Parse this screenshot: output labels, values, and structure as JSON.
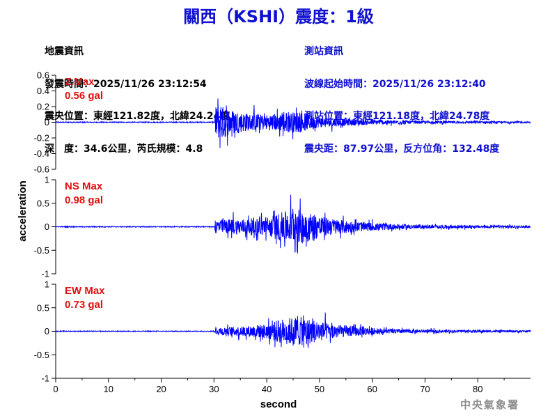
{
  "header": {
    "title": "關西（KSHI）震度：1級"
  },
  "event_info": {
    "heading": "地震資訊",
    "origin_time": "發震時間：2025/11/26 23:12:54",
    "epicenter": "震央位置：東經121.82度，北緯24.24度",
    "depth_magnitude": "深　度：34.6公里，芮氏規模：4.8"
  },
  "station_info": {
    "heading": "測站資訊",
    "wave_start": "波線起始時間：2025/11/26 23:12:40",
    "location": "測站位置：東經121.18度，北緯24.78度",
    "distance": "震央距：87.97公里，反方位角：132.48度"
  },
  "footer": {
    "agency": "中央氣象署"
  },
  "colors": {
    "trace": "#0000ff",
    "title": "#1010d0",
    "max_label": "#e01010"
  },
  "chart_data": {
    "type": "line",
    "xlabel": "second",
    "ylabel": "acceleration",
    "xlim": [
      0,
      90
    ],
    "x_ticks": [
      0,
      10,
      20,
      30,
      40,
      50,
      60,
      70,
      80
    ],
    "grid": false,
    "series": [
      {
        "name": "Z",
        "max_label": "Z Max",
        "max_value": "0.56 gal",
        "ylim": [
          -0.6,
          0.6
        ],
        "y_ticks": [
          -0.6,
          -0.4,
          -0.2,
          0,
          0.2,
          0.4,
          0.6
        ],
        "onset": 30.2,
        "noise": 0.006,
        "envelope": [
          [
            30.2,
            0.45
          ],
          [
            31,
            0.5
          ],
          [
            33,
            0.38
          ],
          [
            36,
            0.25
          ],
          [
            40,
            0.22
          ],
          [
            43,
            0.28
          ],
          [
            46,
            0.3
          ],
          [
            50,
            0.14
          ],
          [
            55,
            0.1
          ],
          [
            60,
            0.07
          ],
          [
            70,
            0.035
          ],
          [
            90,
            0.02
          ]
        ]
      },
      {
        "name": "NS",
        "max_label": "NS Max",
        "max_value": "0.98 gal",
        "ylim": [
          -1,
          1
        ],
        "y_ticks": [
          -1,
          -0.5,
          0,
          0.5,
          1
        ],
        "onset": 30.2,
        "noise": 0.01,
        "envelope": [
          [
            30.2,
            0.3
          ],
          [
            32,
            0.35
          ],
          [
            36,
            0.38
          ],
          [
            40,
            0.45
          ],
          [
            43,
            0.7
          ],
          [
            46,
            0.85
          ],
          [
            48,
            0.7
          ],
          [
            51,
            0.45
          ],
          [
            55,
            0.3
          ],
          [
            60,
            0.18
          ],
          [
            70,
            0.08
          ],
          [
            90,
            0.05
          ]
        ]
      },
      {
        "name": "EW",
        "max_label": "EW Max",
        "max_value": "0.73 gal",
        "ylim": [
          -1,
          1
        ],
        "y_ticks": [
          -1,
          -0.5,
          0,
          0.5,
          1
        ],
        "onset": 30.2,
        "noise": 0.008,
        "envelope": [
          [
            30.2,
            0.15
          ],
          [
            32,
            0.2
          ],
          [
            36,
            0.25
          ],
          [
            40,
            0.35
          ],
          [
            43,
            0.6
          ],
          [
            46,
            0.7
          ],
          [
            49,
            0.55
          ],
          [
            52,
            0.35
          ],
          [
            57,
            0.22
          ],
          [
            62,
            0.12
          ],
          [
            70,
            0.07
          ],
          [
            90,
            0.04
          ]
        ]
      }
    ]
  }
}
